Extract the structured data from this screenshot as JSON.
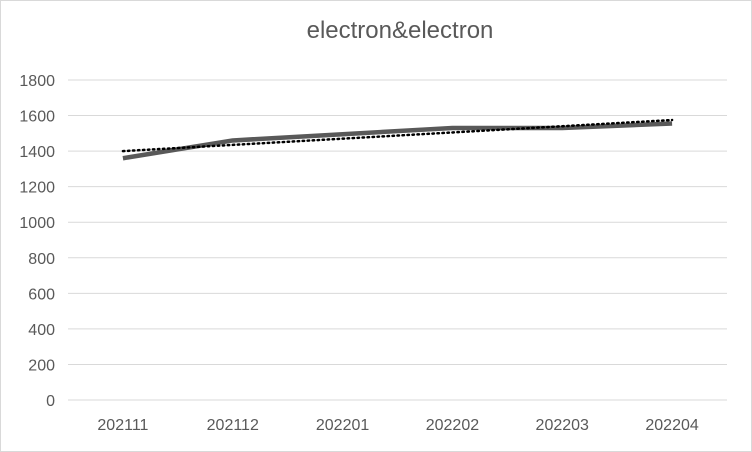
{
  "chart_data": {
    "type": "line",
    "title": "electron&electron",
    "categories": [
      "202111",
      "202112",
      "202201",
      "202202",
      "202203",
      "202204"
    ],
    "series": [
      {
        "values": [
          1360,
          1460,
          1495,
          1530,
          1530,
          1555
        ],
        "color": "#595959"
      }
    ],
    "trendline": {
      "type": "linear",
      "style": "dotted",
      "color": "#000000",
      "start": 1400,
      "end": 1575
    },
    "yticks": [
      0,
      200,
      400,
      600,
      800,
      1000,
      1200,
      1400,
      1600,
      1800
    ],
    "ylim": [
      0,
      1800
    ],
    "grid": true,
    "legend": "none"
  }
}
